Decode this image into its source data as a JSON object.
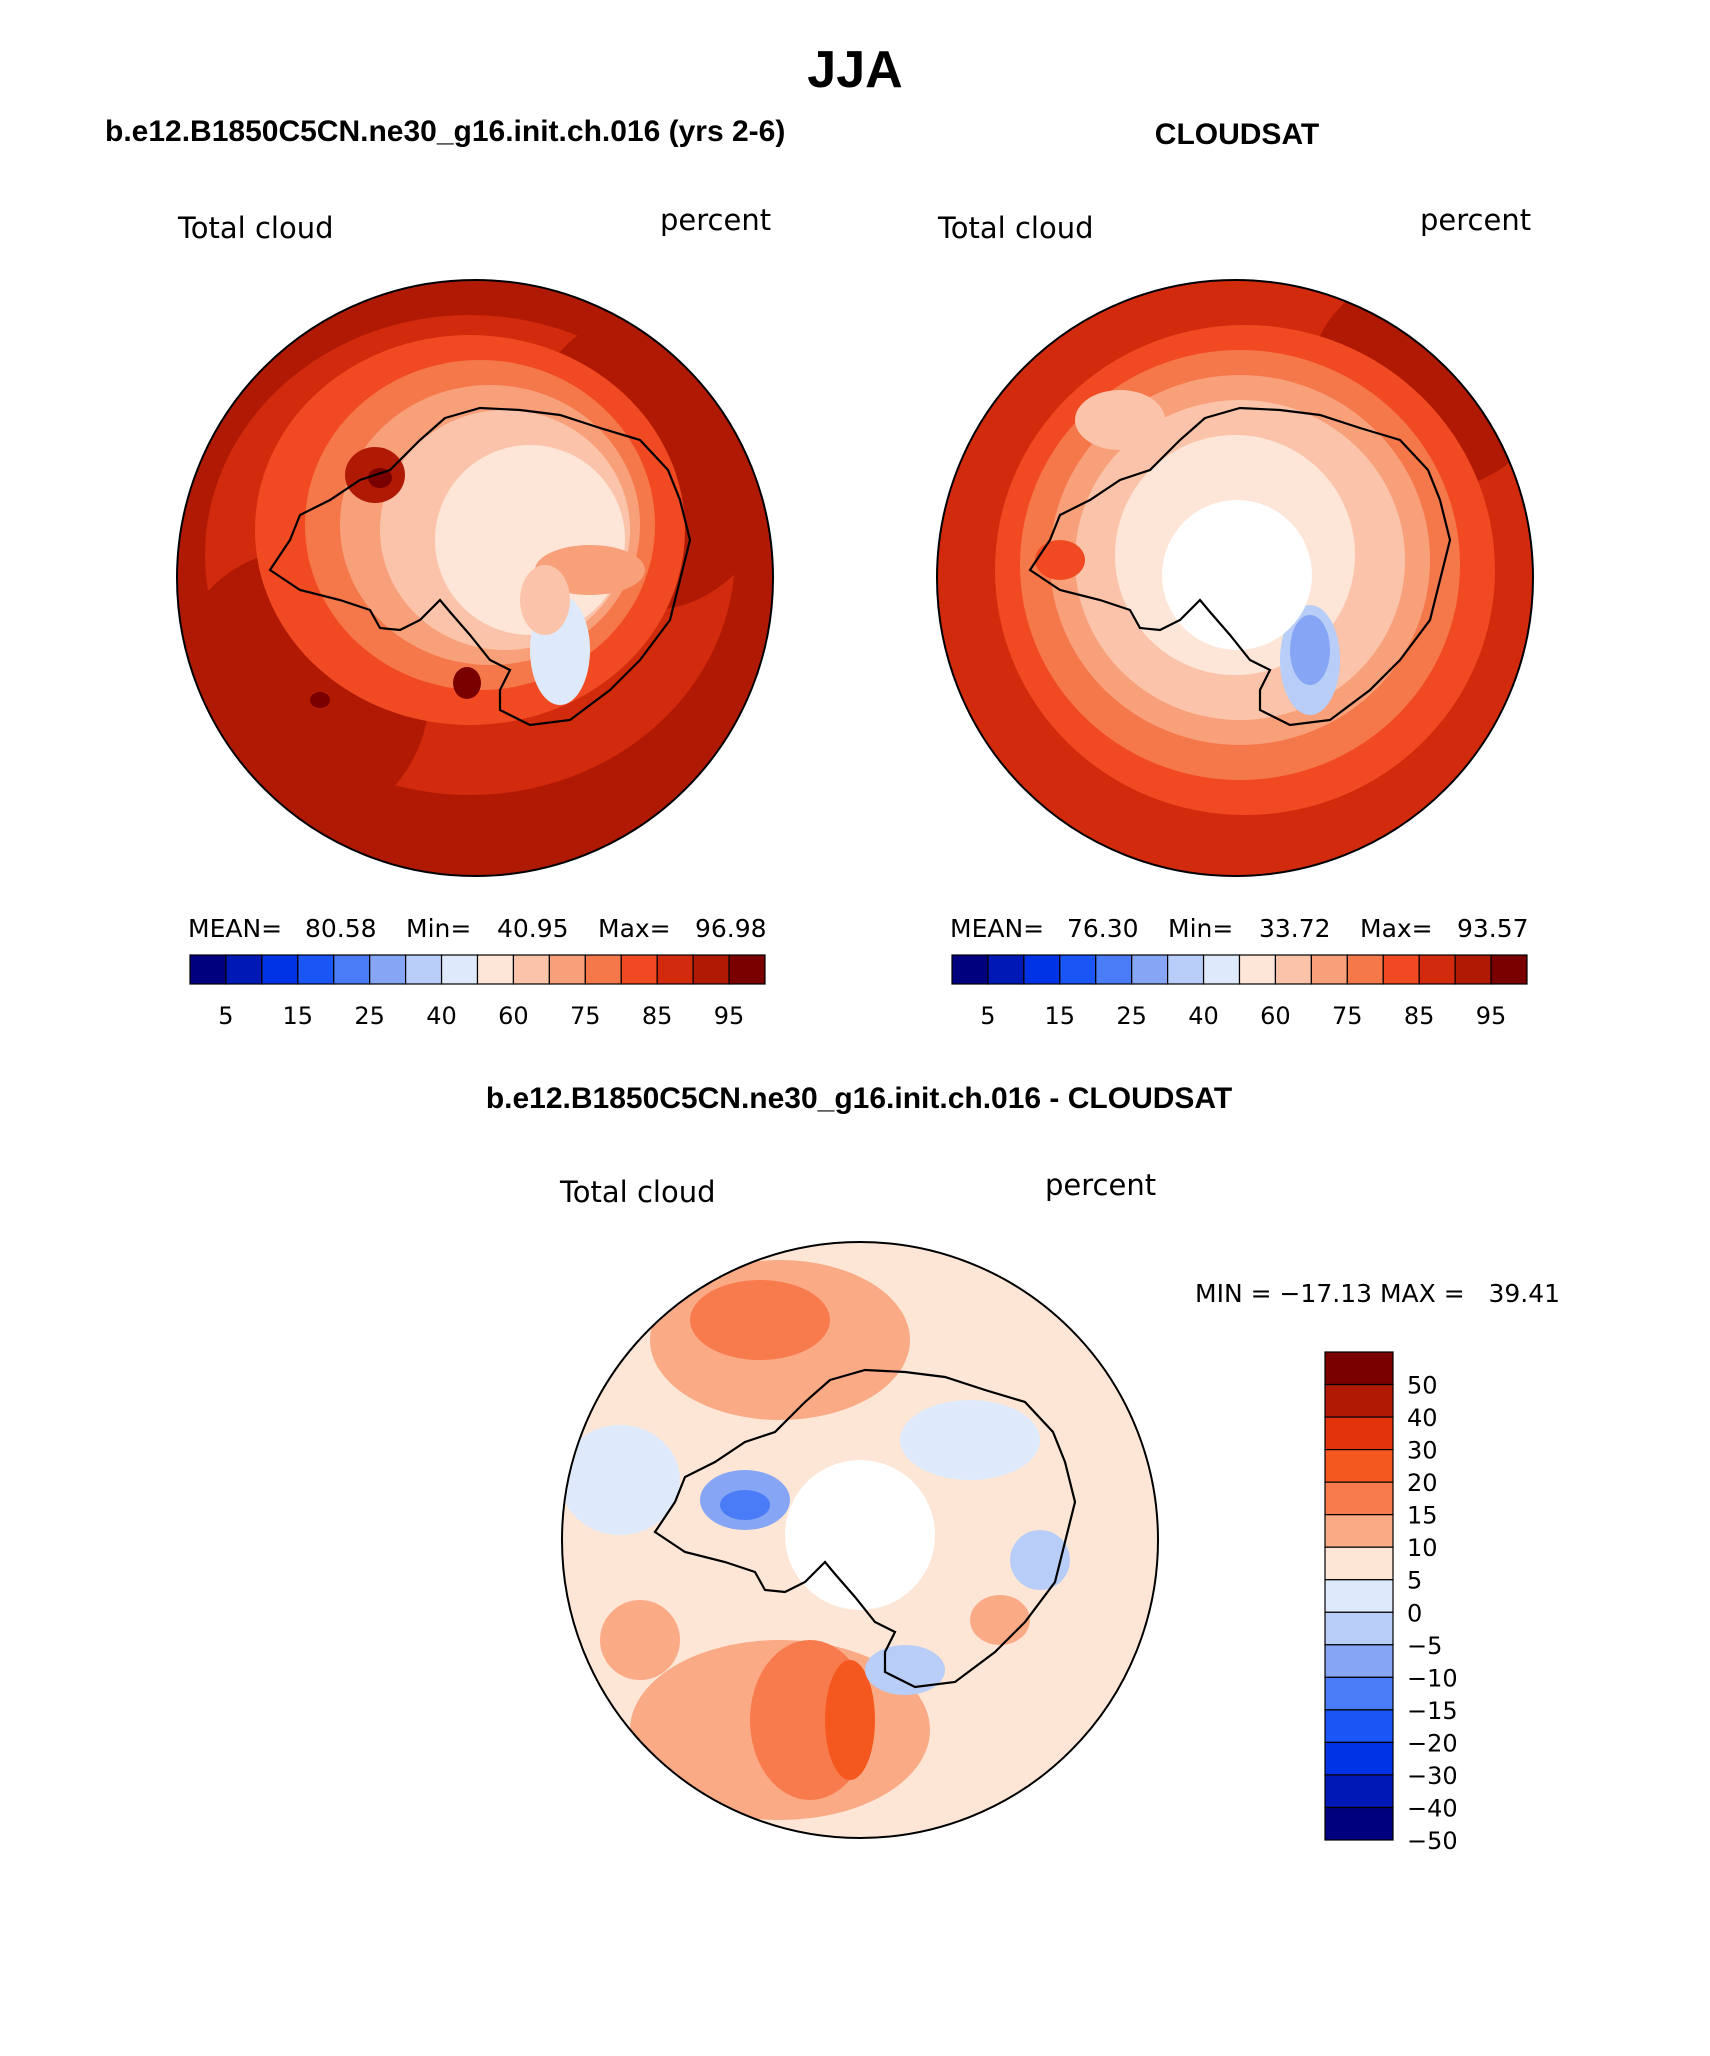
{
  "figure": {
    "title": "JJA",
    "panel1_title": "b.e12.B1850C5CN.ne30_g16.init.ch.016 (yrs 2-6)",
    "panel2_title": "CLOUDSAT",
    "panel3_title": "b.e12.B1850C5CN.ne30_g16.init.ch.016 - CLOUDSAT"
  },
  "panels": [
    {
      "left_label": "Total cloud",
      "right_label": "percent",
      "stats": {
        "mean_label": "MEAN=",
        "mean": "80.58",
        "min_label": "Min=",
        "min": "40.95",
        "max_label": "Max=",
        "max": "96.98"
      }
    },
    {
      "left_label": "Total cloud",
      "right_label": "percent",
      "stats": {
        "mean_label": "MEAN=",
        "mean": "76.30",
        "min_label": "Min=",
        "min": "33.72",
        "max_label": "Max=",
        "max": "93.57"
      }
    },
    {
      "left_label": "Total cloud",
      "right_label": "percent",
      "minmax": "MIN = −17.13 MAX =   39.41"
    }
  ],
  "colorbar_abs": {
    "colors": [
      "#00007f",
      "#0019b5",
      "#0033e5",
      "#1a55f5",
      "#4a7cf7",
      "#86a6f5",
      "#b8cdf7",
      "#deeafb",
      "#fde6d8",
      "#fbc4aa",
      "#f8a07a",
      "#f5784a",
      "#f14a22",
      "#d22a0c",
      "#b01a05",
      "#7a0000"
    ],
    "tick_labels": [
      "5",
      "15",
      "25",
      "40",
      "60",
      "75",
      "85",
      "95"
    ]
  },
  "colorbar_diff": {
    "colors": [
      "#7a0000",
      "#b01a05",
      "#e3330d",
      "#f5581f",
      "#f77b4c",
      "#fbaa86",
      "#fde6d6",
      "#deeafb",
      "#b8cdf7",
      "#86a6f5",
      "#4a7cf7",
      "#1a55f5",
      "#0033e5",
      "#0019b5",
      "#00007f"
    ],
    "tick_labels": [
      "50",
      "40",
      "30",
      "20",
      "15",
      "10",
      "5",
      "0",
      "−5",
      "−10",
      "−15",
      "−20",
      "−30",
      "−40",
      "−50"
    ]
  }
}
